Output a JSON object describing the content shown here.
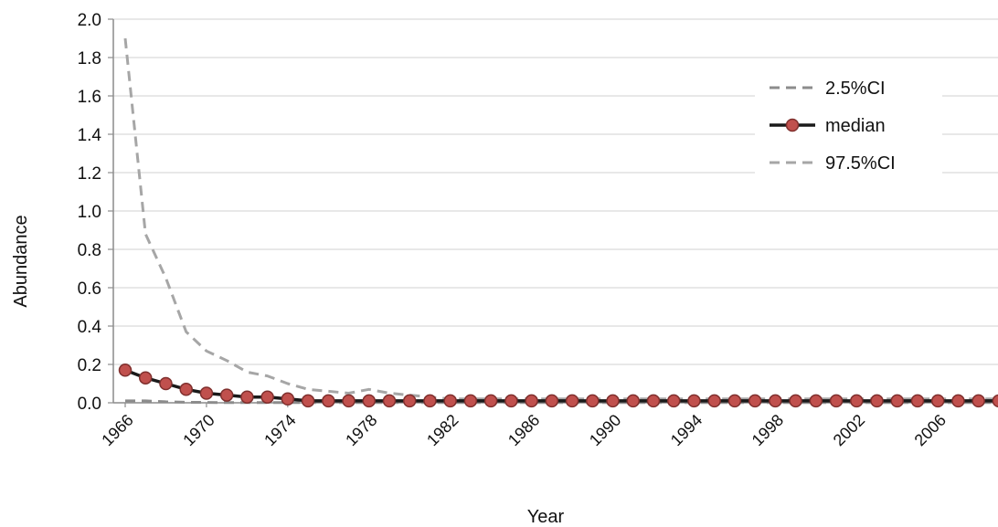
{
  "chart_data": {
    "type": "line",
    "title": "",
    "xlabel": "Year",
    "ylabel": "Abundance",
    "xlim": [
      1966,
      2009
    ],
    "ylim": [
      0,
      2.0
    ],
    "y_ticks": [
      "0.0",
      "0.2",
      "0.4",
      "0.6",
      "0.8",
      "1.0",
      "1.2",
      "1.4",
      "1.6",
      "1.8",
      "2.0"
    ],
    "x_ticks": [
      "1966",
      "1970",
      "1974",
      "1978",
      "1982",
      "1986",
      "1990",
      "1994",
      "1998",
      "2002",
      "2006"
    ],
    "grid": "horizontal",
    "legend_position": "upper-right",
    "x": [
      1966,
      1967,
      1968,
      1969,
      1970,
      1971,
      1972,
      1973,
      1974,
      1975,
      1976,
      1977,
      1978,
      1979,
      1980,
      1981,
      1982,
      1983,
      1984,
      1985,
      1986,
      1987,
      1988,
      1989,
      1990,
      1991,
      1992,
      1993,
      1994,
      1995,
      1996,
      1997,
      1998,
      1999,
      2000,
      2001,
      2002,
      2003,
      2004,
      2005,
      2006,
      2007,
      2008,
      2009
    ],
    "series": [
      {
        "name": "2.5%CI",
        "style": "dashed",
        "color": "#8c8c8c",
        "values": [
          0.01,
          0.01,
          0.005,
          0.003,
          0.002,
          0.001,
          0.001,
          0.001,
          0.001,
          0.001,
          0.001,
          0.001,
          0.001,
          0.001,
          0.001,
          0.001,
          0.001,
          0.001,
          0.001,
          0.001,
          0.001,
          0.001,
          0.001,
          0.001,
          0.001,
          0.001,
          0.001,
          0.001,
          0.001,
          0.001,
          0.001,
          0.001,
          0.001,
          0.001,
          0.001,
          0.001,
          0.001,
          0.001,
          0.001,
          0.001,
          0.001,
          0.001,
          0.001,
          0.001
        ]
      },
      {
        "name": "median",
        "style": "solid-markers",
        "color": "#1a1a1a",
        "marker_color": "#c0504d",
        "values": [
          0.17,
          0.13,
          0.1,
          0.07,
          0.05,
          0.04,
          0.03,
          0.03,
          0.02,
          0.01,
          0.01,
          0.01,
          0.01,
          0.01,
          0.01,
          0.01,
          0.01,
          0.01,
          0.01,
          0.01,
          0.01,
          0.01,
          0.01,
          0.01,
          0.01,
          0.01,
          0.01,
          0.01,
          0.01,
          0.01,
          0.01,
          0.01,
          0.01,
          0.01,
          0.01,
          0.01,
          0.01,
          0.01,
          0.01,
          0.01,
          0.01,
          0.01,
          0.01,
          0.01
        ]
      },
      {
        "name": "97.5%CI",
        "style": "dashed",
        "color": "#a6a6a6",
        "values": [
          1.9,
          0.88,
          0.65,
          0.37,
          0.27,
          0.22,
          0.16,
          0.14,
          0.1,
          0.07,
          0.06,
          0.05,
          0.07,
          0.05,
          0.04,
          0.03,
          0.02,
          0.02,
          0.02,
          0.02,
          0.02,
          0.02,
          0.02,
          0.02,
          0.02,
          0.02,
          0.02,
          0.02,
          0.02,
          0.02,
          0.02,
          0.02,
          0.02,
          0.02,
          0.02,
          0.02,
          0.02,
          0.02,
          0.02,
          0.02,
          0.02,
          0.02,
          0.02,
          0.02
        ]
      }
    ]
  },
  "colors": {
    "grid": "#d9d9d9",
    "axis": "#8c8c8c",
    "marker_fill": "#c0504d",
    "marker_stroke": "#7f2f2d",
    "median_line": "#1a1a1a",
    "ci_low": "#8c8c8c",
    "ci_high": "#a6a6a6"
  }
}
